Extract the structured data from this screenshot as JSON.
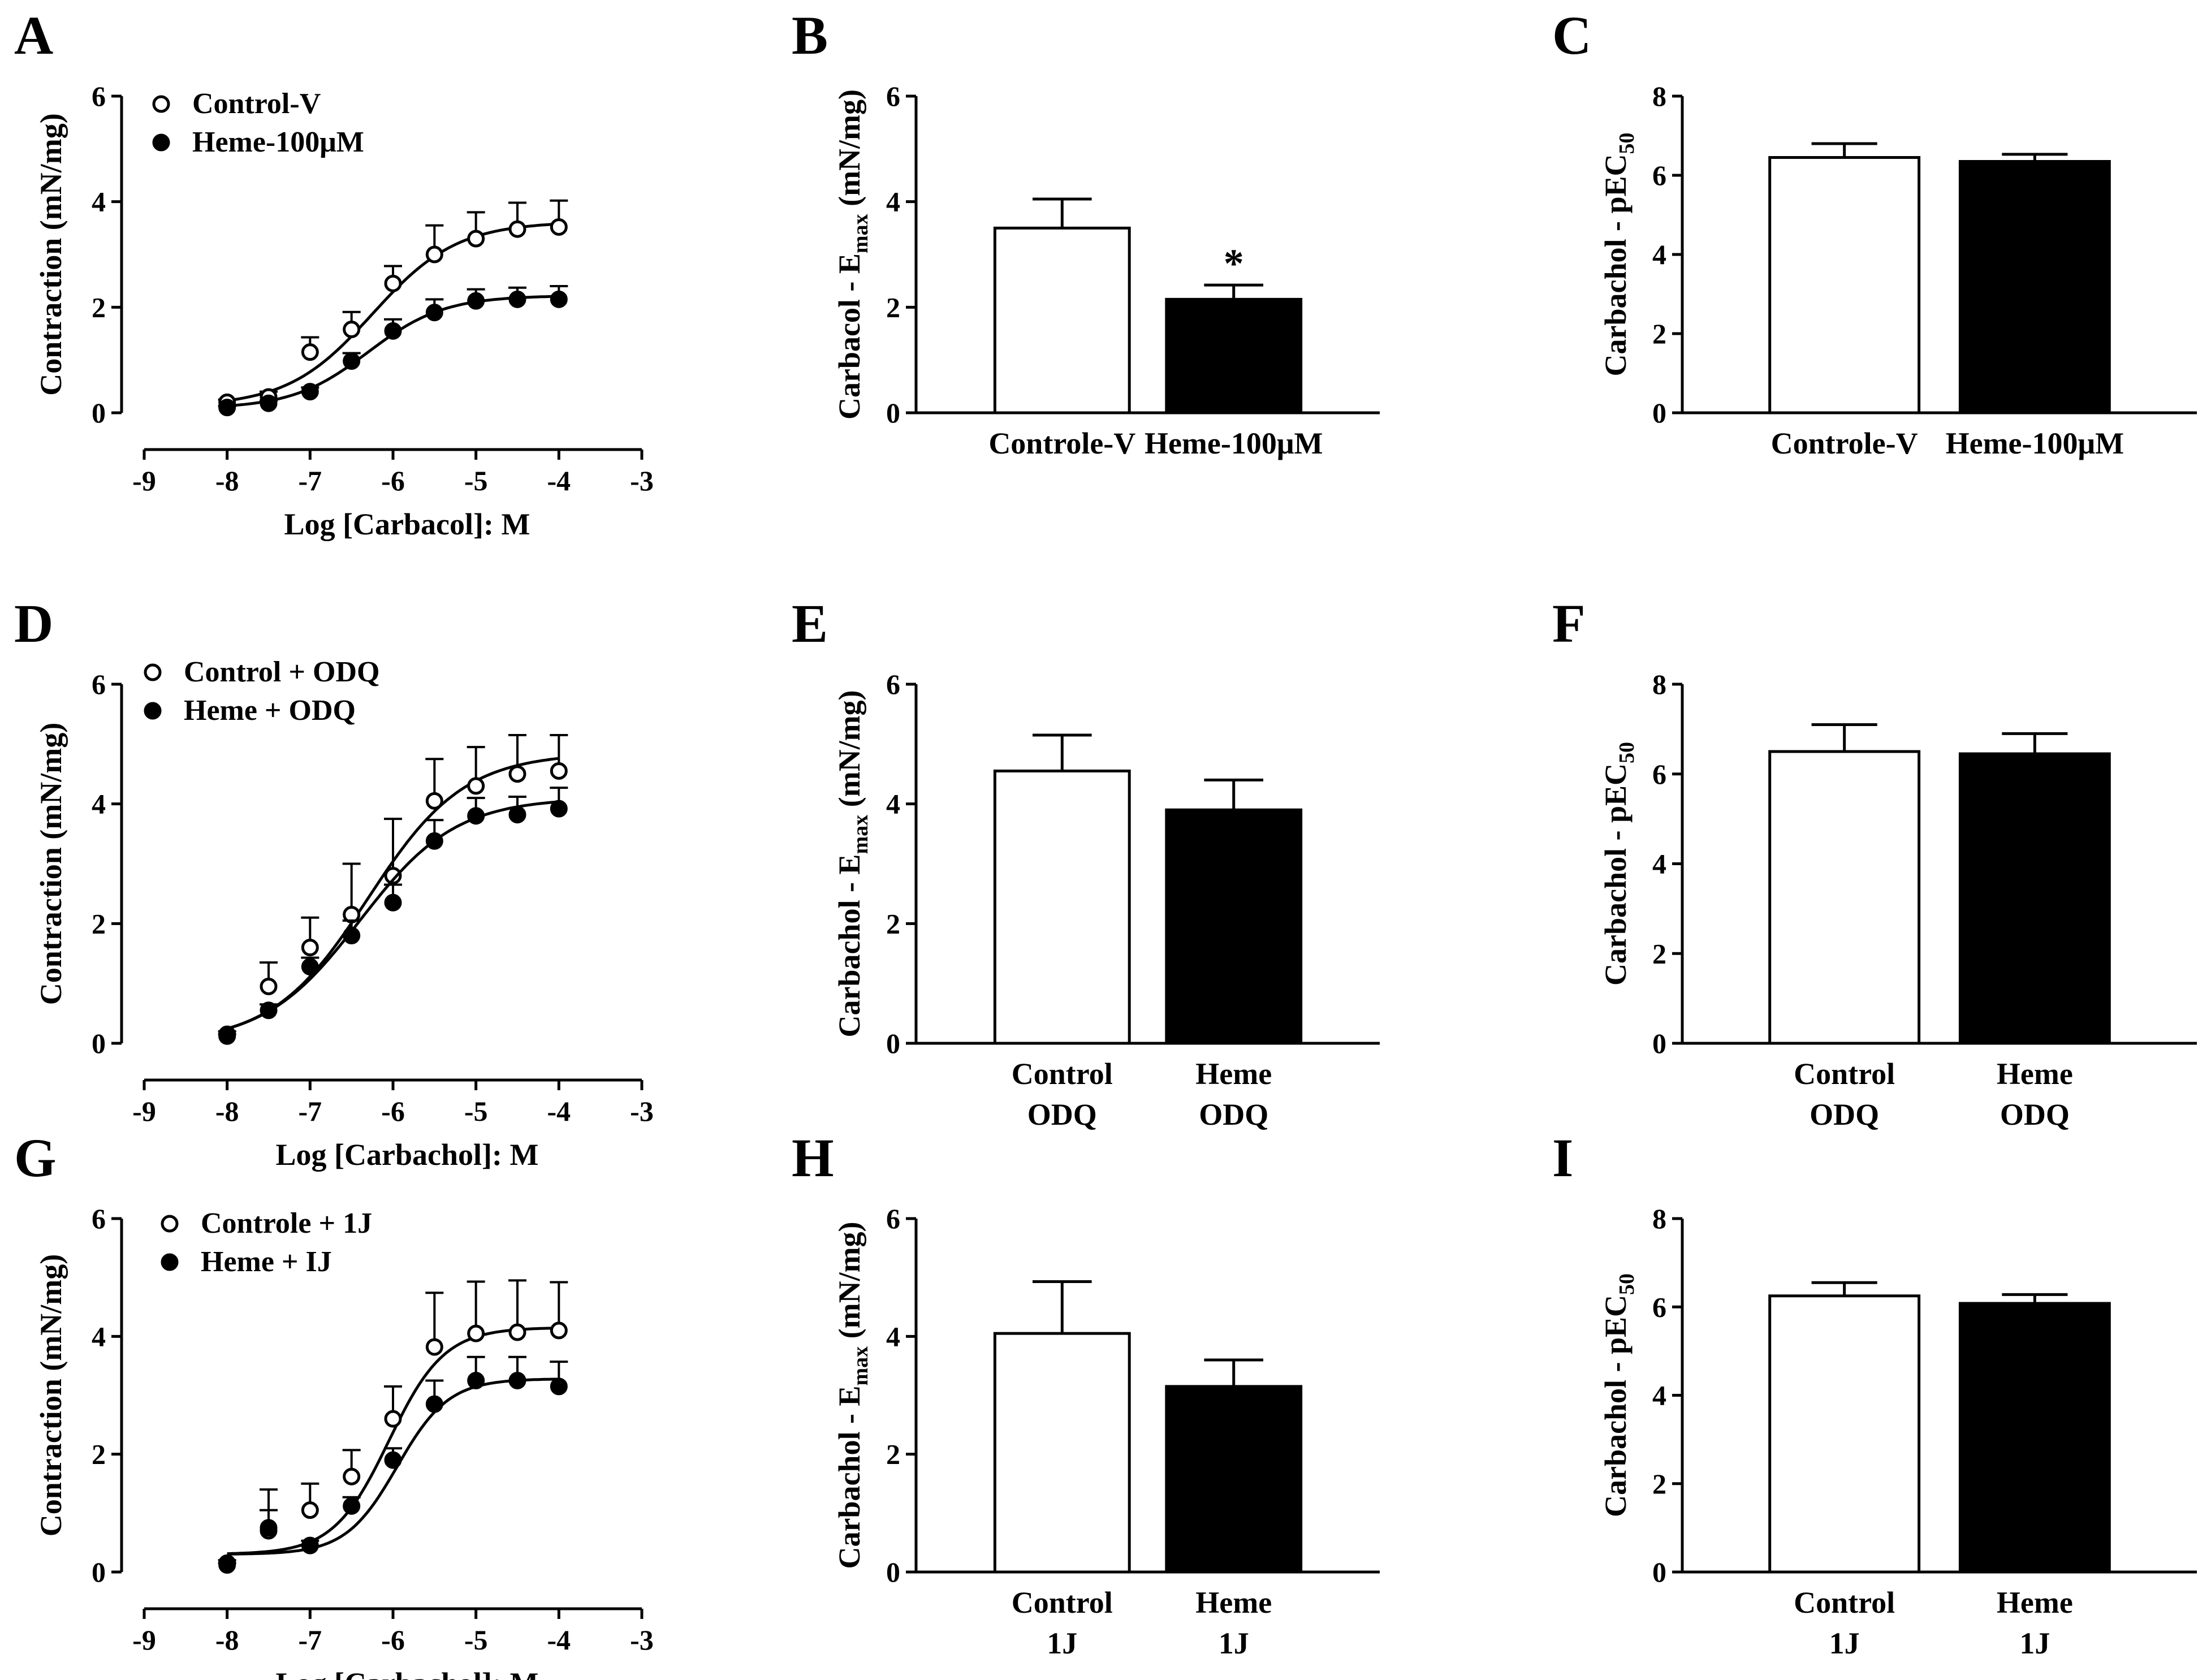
{
  "figure": {
    "panels": [
      {
        "letter": "A",
        "chart_data": {
          "type": "scatter",
          "xlabel": "Log [Carbacol]: M",
          "ylabel": "Contraction (mN/mg)",
          "xlim": [
            -9,
            -3
          ],
          "ylim": [
            0,
            6
          ],
          "xticks": [
            -9,
            -8,
            -7,
            -6,
            -5,
            -4,
            -3
          ],
          "yticks": [
            0,
            2,
            4,
            6
          ],
          "x": [
            -8,
            -7.5,
            -7,
            -6.5,
            -6,
            -5.5,
            -5,
            -4.5,
            -4
          ],
          "series": [
            {
              "name": "Control-V",
              "marker": "open",
              "y": [
                0.2,
                0.3,
                1.15,
                1.58,
                2.45,
                3.0,
                3.3,
                3.48,
                3.52
              ],
              "error": [
                0.05,
                0.1,
                0.28,
                0.33,
                0.33,
                0.55,
                0.5,
                0.5,
                0.5
              ],
              "fit": {
                "bottom": 0.12,
                "top": 3.62,
                "logec50": -6.25,
                "hill": 0.85
              }
            },
            {
              "name": "Heme-100μM",
              "marker": "filled",
              "y": [
                0.1,
                0.18,
                0.4,
                0.98,
                1.55,
                1.9,
                2.12,
                2.15,
                2.15
              ],
              "error": [
                0.03,
                0.05,
                0.08,
                0.15,
                0.22,
                0.25,
                0.22,
                0.22,
                0.25
              ],
              "fit": {
                "bottom": 0.08,
                "top": 2.22,
                "logec50": -6.3,
                "hill": 0.95
              }
            }
          ]
        }
      },
      {
        "letter": "B",
        "chart_data": {
          "type": "bar",
          "ylabel": "Carbacol - E",
          "ylabel_sub": "max",
          "ylabel_tail": " (mN/mg)",
          "ylim": [
            0,
            6
          ],
          "yticks": [
            0,
            2,
            4,
            6
          ],
          "categories": [
            [
              "Controle-V"
            ],
            [
              "Heme-100μM"
            ]
          ],
          "values": [
            3.5,
            2.15
          ],
          "errors": [
            0.55,
            0.27
          ],
          "fills": [
            "#ffffff",
            "#000000"
          ],
          "annotations": [
            "",
            "*"
          ]
        }
      },
      {
        "letter": "C",
        "chart_data": {
          "type": "bar",
          "ylabel": "Carbachol - pEC",
          "ylabel_sub": "50",
          "ylabel_tail": "",
          "ylim": [
            0,
            8
          ],
          "yticks": [
            0,
            2,
            4,
            6,
            8
          ],
          "categories": [
            [
              "Controle-V"
            ],
            [
              "Heme-100μM"
            ]
          ],
          "values": [
            6.45,
            6.35
          ],
          "errors": [
            0.35,
            0.18
          ],
          "fills": [
            "#ffffff",
            "#000000"
          ],
          "annotations": [
            "",
            ""
          ]
        }
      },
      {
        "letter": "D",
        "chart_data": {
          "type": "scatter",
          "xlabel": "Log [Carbachol]: M",
          "ylabel": "Contraction (mN/mg)",
          "xlim": [
            -9,
            -3
          ],
          "ylim": [
            0,
            6
          ],
          "xticks": [
            -9,
            -8,
            -7,
            -6,
            -5,
            -4,
            -3
          ],
          "yticks": [
            0,
            2,
            4,
            6
          ],
          "x": [
            -8,
            -7.5,
            -7,
            -6.5,
            -6,
            -5.5,
            -5,
            -4.5,
            -4
          ],
          "series": [
            {
              "name": "Control + ODQ",
              "marker": "open",
              "y": [
                0.15,
                0.95,
                1.6,
                2.15,
                2.8,
                4.05,
                4.3,
                4.5,
                4.55
              ],
              "error": [
                0.05,
                0.4,
                0.5,
                0.85,
                0.95,
                0.7,
                0.65,
                0.65,
                0.6
              ],
              "fit": {
                "bottom": 0.0,
                "top": 4.85,
                "logec50": -6.3,
                "hill": 0.75
              }
            },
            {
              "name": "Heme + ODQ",
              "marker": "filled",
              "y": [
                0.12,
                0.55,
                1.28,
                1.8,
                2.35,
                3.38,
                3.8,
                3.82,
                3.92
              ],
              "error": [
                0.03,
                0.1,
                0.15,
                0.25,
                0.3,
                0.35,
                0.3,
                0.3,
                0.35
              ],
              "fit": {
                "bottom": 0.0,
                "top": 4.1,
                "logec50": -6.4,
                "hill": 0.75
              }
            }
          ]
        }
      },
      {
        "letter": "E",
        "chart_data": {
          "type": "bar",
          "ylabel": "Carbachol - E",
          "ylabel_sub": "max",
          "ylabel_tail": " (mN/mg)",
          "ylim": [
            0,
            6
          ],
          "yticks": [
            0,
            2,
            4,
            6
          ],
          "categories": [
            [
              "Control",
              "ODQ"
            ],
            [
              "Heme",
              "ODQ"
            ]
          ],
          "values": [
            4.55,
            3.9
          ],
          "errors": [
            0.6,
            0.5
          ],
          "fills": [
            "#ffffff",
            "#000000"
          ],
          "annotations": [
            "",
            ""
          ]
        }
      },
      {
        "letter": "F",
        "chart_data": {
          "type": "bar",
          "ylabel": "Carbachol - pEC",
          "ylabel_sub": "50",
          "ylabel_tail": "",
          "ylim": [
            0,
            8
          ],
          "yticks": [
            0,
            2,
            4,
            6,
            8
          ],
          "categories": [
            [
              "Control",
              "ODQ"
            ],
            [
              "Heme",
              "ODQ"
            ]
          ],
          "values": [
            6.5,
            6.45
          ],
          "errors": [
            0.6,
            0.45
          ],
          "fills": [
            "#ffffff",
            "#000000"
          ],
          "annotations": [
            "",
            ""
          ]
        }
      },
      {
        "letter": "G",
        "chart_data": {
          "type": "scatter",
          "xlabel": "Log [Carbachol]: M",
          "ylabel": "Contraction (mN/mg)",
          "xlim": [
            -9,
            -3
          ],
          "ylim": [
            0,
            6
          ],
          "xticks": [
            -9,
            -8,
            -7,
            -6,
            -5,
            -4,
            -3
          ],
          "yticks": [
            0,
            2,
            4,
            6
          ],
          "x": [
            -8,
            -7.5,
            -7,
            -6.5,
            -6,
            -5.5,
            -5,
            -4.5,
            -4
          ],
          "series": [
            {
              "name": "Controle + 1J",
              "marker": "open",
              "y": [
                0.15,
                0.7,
                1.05,
                1.62,
                2.6,
                3.82,
                4.05,
                4.07,
                4.1
              ],
              "error": [
                0.05,
                0.7,
                0.45,
                0.45,
                0.55,
                0.92,
                0.88,
                0.88,
                0.82
              ],
              "fit": {
                "bottom": 0.3,
                "top": 4.15,
                "logec50": -6.05,
                "hill": 1.3
              }
            },
            {
              "name": "Heme + IJ",
              "marker": "filled",
              "y": [
                0.12,
                0.75,
                0.45,
                1.12,
                1.9,
                2.85,
                3.25,
                3.25,
                3.15
              ],
              "error": [
                0.03,
                0.3,
                0.08,
                0.15,
                0.2,
                0.4,
                0.4,
                0.4,
                0.42
              ],
              "fit": {
                "bottom": 0.3,
                "top": 3.28,
                "logec50": -5.95,
                "hill": 1.4
              }
            }
          ]
        }
      },
      {
        "letter": "H",
        "chart_data": {
          "type": "bar",
          "ylabel": "Carbachol - E",
          "ylabel_sub": "max",
          "ylabel_tail": " (mN/mg)",
          "ylim": [
            0,
            6
          ],
          "yticks": [
            0,
            2,
            4,
            6
          ],
          "categories": [
            [
              "Control",
              "1J"
            ],
            [
              "Heme",
              "1J"
            ]
          ],
          "values": [
            4.05,
            3.15
          ],
          "errors": [
            0.88,
            0.45
          ],
          "fills": [
            "#ffffff",
            "#000000"
          ],
          "annotations": [
            "",
            ""
          ]
        }
      },
      {
        "letter": "I",
        "chart_data": {
          "type": "bar",
          "ylabel": "Carbachol - pEC",
          "ylabel_sub": "50",
          "ylabel_tail": "",
          "ylim": [
            0,
            8
          ],
          "yticks": [
            0,
            2,
            4,
            6,
            8
          ],
          "categories": [
            [
              "Control",
              "1J"
            ],
            [
              "Heme",
              "1J"
            ]
          ],
          "values": [
            6.25,
            6.08
          ],
          "errors": [
            0.3,
            0.2
          ],
          "fills": [
            "#ffffff",
            "#000000"
          ],
          "annotations": [
            "",
            ""
          ]
        }
      }
    ]
  }
}
